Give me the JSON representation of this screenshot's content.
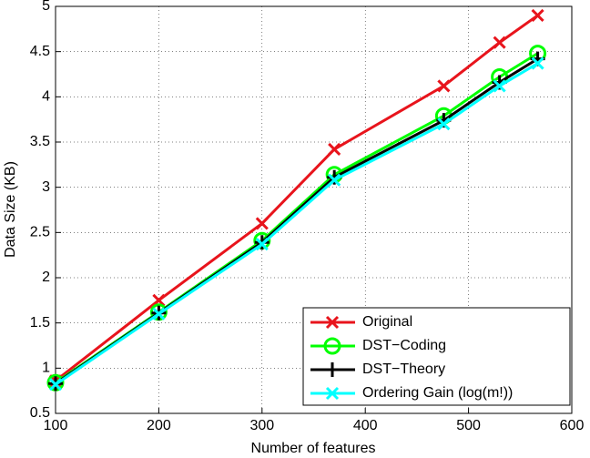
{
  "chart_data": {
    "type": "line",
    "x_label": "Number of features",
    "y_label": "Data Size (KB)",
    "x": [
      100,
      200,
      300,
      370,
      476,
      530,
      567
    ],
    "series": [
      {
        "name": "Original",
        "color": "#e8141c",
        "marker": "x",
        "values": [
          0.86,
          1.75,
          2.6,
          3.42,
          4.12,
          4.6,
          4.9
        ]
      },
      {
        "name": "DST−Coding",
        "color": "#00ff00",
        "marker": "o",
        "values": [
          0.84,
          1.62,
          2.41,
          3.14,
          3.79,
          4.22,
          4.48
        ]
      },
      {
        "name": "DST−Theory",
        "color": "#000000",
        "marker": "+",
        "values": [
          0.83,
          1.61,
          2.39,
          3.11,
          3.74,
          4.16,
          4.42
        ]
      },
      {
        "name": "Ordering Gain (log(m!))",
        "color": "#00ffff",
        "marker": "x",
        "values": [
          0.82,
          1.6,
          2.37,
          3.08,
          3.7,
          4.12,
          4.37
        ]
      }
    ],
    "xlim": [
      100,
      600
    ],
    "xticks": [
      100,
      200,
      300,
      400,
      500,
      600
    ],
    "ylim": [
      0.5,
      5
    ],
    "yticks": [
      0.5,
      1,
      1.5,
      2,
      2.5,
      3,
      3.5,
      4,
      4.5,
      5
    ],
    "grid": true,
    "legend": "lower right"
  }
}
